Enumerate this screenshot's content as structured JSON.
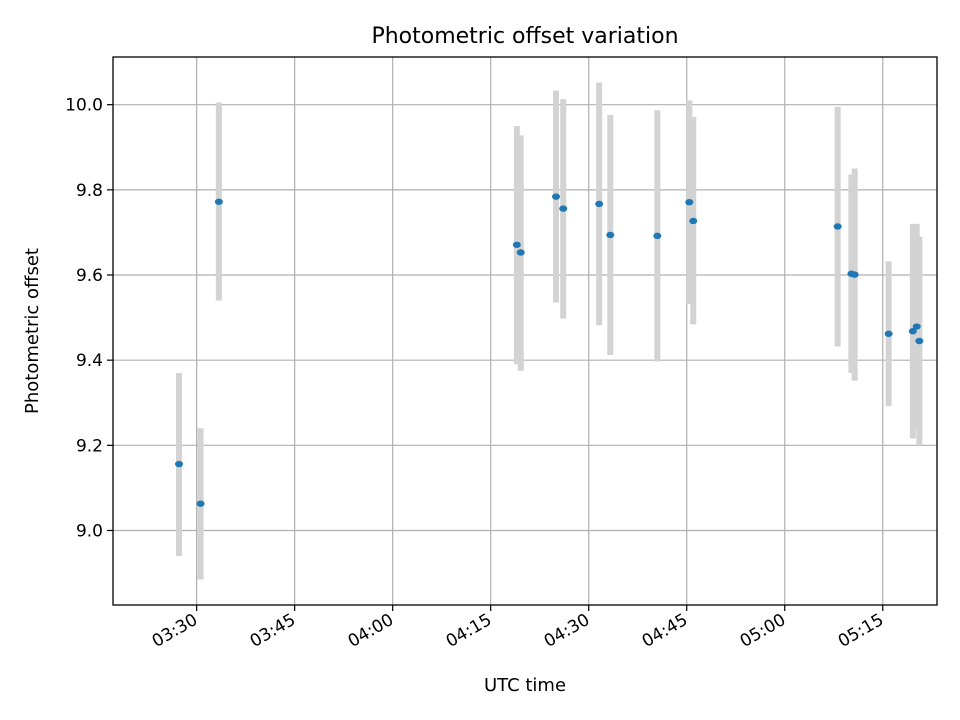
{
  "chart_data": {
    "type": "scatter",
    "title": "Photometric offset variation",
    "xlabel": "UTC time",
    "ylabel": "Photometric offset",
    "x_unit": "minutes after 03:00 UTC",
    "xlim": [
      17.2,
      143.3
    ],
    "ylim": [
      8.825,
      10.112
    ],
    "x_ticks": [
      {
        "value": 30,
        "label": "03:30"
      },
      {
        "value": 45,
        "label": "03:45"
      },
      {
        "value": 60,
        "label": "04:00"
      },
      {
        "value": 75,
        "label": "04:15"
      },
      {
        "value": 90,
        "label": "04:30"
      },
      {
        "value": 105,
        "label": "04:45"
      },
      {
        "value": 120,
        "label": "05:00"
      },
      {
        "value": 135,
        "label": "05:15"
      }
    ],
    "y_ticks": [
      {
        "value": 9.0,
        "label": "9.0"
      },
      {
        "value": 9.2,
        "label": "9.2"
      },
      {
        "value": 9.4,
        "label": "9.4"
      },
      {
        "value": 9.6,
        "label": "9.6"
      },
      {
        "value": 9.8,
        "label": "9.8"
      },
      {
        "value": 10.0,
        "label": "10.0"
      }
    ],
    "grid": true,
    "colors": {
      "point": "#1f77b4",
      "errorbar": "#d3d3d3",
      "grid": "#b0b0b0",
      "axis": "#000000"
    },
    "series": [
      {
        "name": "offset",
        "points": [
          {
            "x": 27.3,
            "y": 9.156,
            "err_low": 8.94,
            "err_high": 9.37
          },
          {
            "x": 30.6,
            "y": 9.063,
            "err_low": 8.885,
            "err_high": 9.24
          },
          {
            "x": 33.4,
            "y": 9.772,
            "err_low": 9.54,
            "err_high": 10.005
          },
          {
            "x": 79.0,
            "y": 9.671,
            "err_low": 9.39,
            "err_high": 9.95
          },
          {
            "x": 79.6,
            "y": 9.653,
            "err_low": 9.375,
            "err_high": 9.928
          },
          {
            "x": 85.0,
            "y": 9.784,
            "err_low": 9.535,
            "err_high": 10.033
          },
          {
            "x": 86.1,
            "y": 9.756,
            "err_low": 9.498,
            "err_high": 10.013
          },
          {
            "x": 91.6,
            "y": 9.767,
            "err_low": 9.482,
            "err_high": 10.052
          },
          {
            "x": 93.3,
            "y": 9.694,
            "err_low": 9.412,
            "err_high": 9.976
          },
          {
            "x": 100.5,
            "y": 9.692,
            "err_low": 9.397,
            "err_high": 9.987
          },
          {
            "x": 105.4,
            "y": 9.771,
            "err_low": 9.532,
            "err_high": 10.01
          },
          {
            "x": 106.0,
            "y": 9.727,
            "err_low": 9.484,
            "err_high": 9.971
          },
          {
            "x": 128.1,
            "y": 9.714,
            "err_low": 9.432,
            "err_high": 9.995
          },
          {
            "x": 130.2,
            "y": 9.603,
            "err_low": 9.37,
            "err_high": 9.836
          },
          {
            "x": 130.7,
            "y": 9.601,
            "err_low": 9.352,
            "err_high": 9.85
          },
          {
            "x": 135.9,
            "y": 9.462,
            "err_low": 9.292,
            "err_high": 9.632
          },
          {
            "x": 139.6,
            "y": 9.468,
            "err_low": 9.216,
            "err_high": 9.72
          },
          {
            "x": 140.2,
            "y": 9.479,
            "err_low": 9.238,
            "err_high": 9.72
          },
          {
            "x": 140.6,
            "y": 9.445,
            "err_low": 9.2,
            "err_high": 9.69
          }
        ]
      }
    ]
  }
}
